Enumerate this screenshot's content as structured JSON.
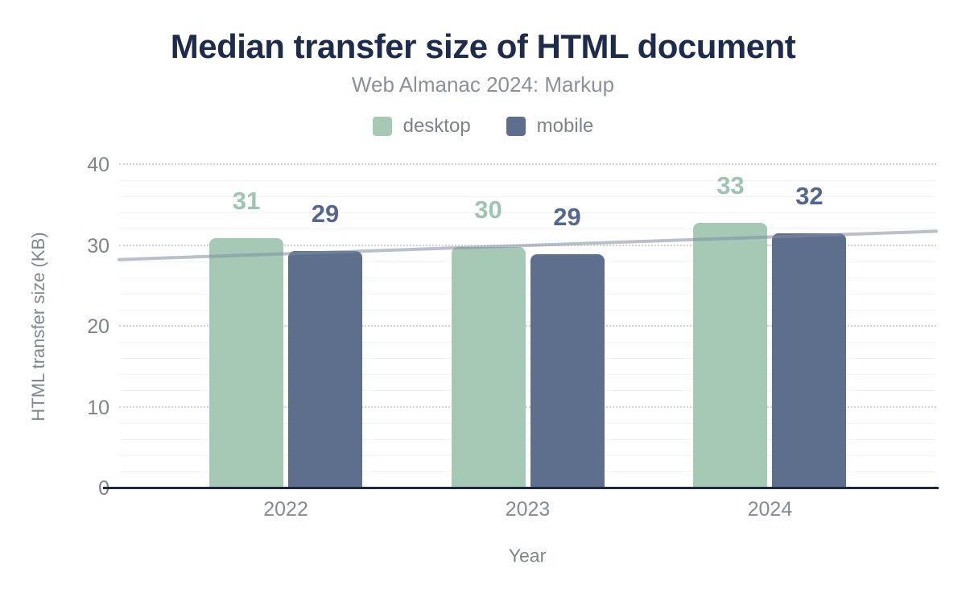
{
  "chart_data": {
    "type": "bar",
    "title": "Median transfer size of HTML document",
    "subtitle": "Web Almanac 2024: Markup",
    "categories": [
      "2022",
      "2023",
      "2024"
    ],
    "series": [
      {
        "name": "desktop",
        "color": "#a5c9b5",
        "label_color": "#9dc5af",
        "values": [
          30.9,
          29.9,
          32.8
        ],
        "display_labels": [
          "31",
          "30",
          "33"
        ]
      },
      {
        "name": "mobile",
        "color": "#5e6f8d",
        "label_color": "#54688e",
        "values": [
          29.4,
          29.0,
          31.5
        ],
        "display_labels": [
          "29",
          "29",
          "32"
        ]
      }
    ],
    "trendline": {
      "start_value": 28.3,
      "end_value": 31.8,
      "color": "#7f8ca0"
    },
    "xlabel": "Year",
    "ylabel": "HTML transfer size (KB)",
    "ylim": [
      0,
      40
    ],
    "yticks": [
      0,
      10,
      20,
      30,
      40
    ],
    "minor_grid_step": 2,
    "legend_position": "top",
    "grid": true
  },
  "colors": {
    "background": "#ffffff",
    "title_text": "#1d2b4c",
    "subtitle_text": "#8b919b",
    "axis_text": "#7f858f",
    "axis_line": "#1c2942",
    "major_grid": "#ced3da",
    "minor_grid": "#f0f2f5"
  }
}
